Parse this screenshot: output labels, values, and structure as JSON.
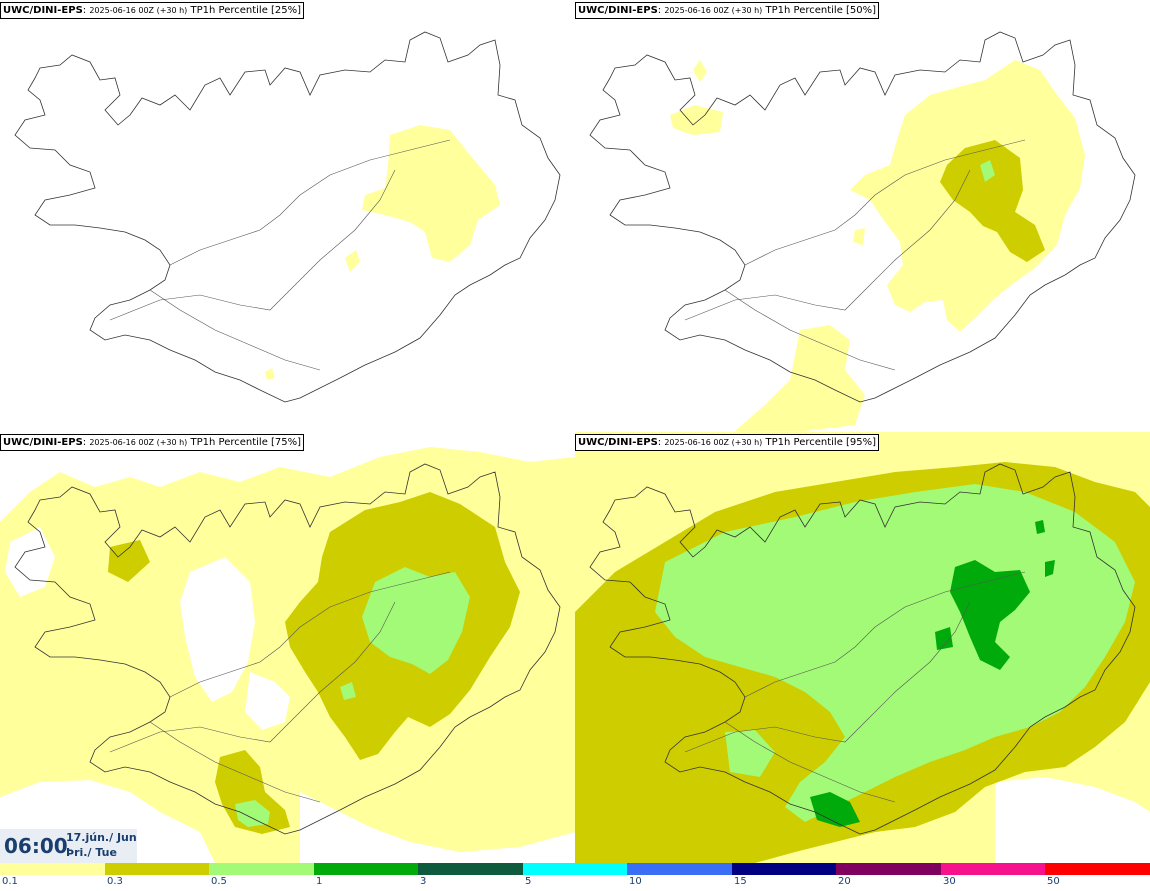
{
  "panels": [
    {
      "model": "UWC/DINI-EPS",
      "run": "2025-06-16 00Z (+30 h)",
      "field": "TP1h Percentile [25%]"
    },
    {
      "model": "UWC/DINI-EPS",
      "run": "2025-06-16 00Z (+30 h)",
      "field": "TP1h Percentile [50%]"
    },
    {
      "model": "UWC/DINI-EPS",
      "run": "2025-06-16 00Z (+30 h)",
      "field": "TP1h Percentile [75%]"
    },
    {
      "model": "UWC/DINI-EPS",
      "run": "2025-06-16 00Z (+30 h)",
      "field": "TP1h Percentile [95%]"
    }
  ],
  "valid_time": {
    "hour": "06:00",
    "date_line": "17.jún./ Jun",
    "day_line": "Þri./ Tue"
  },
  "colorbar": {
    "colors": [
      "#ffff9c",
      "#cdcd00",
      "#a2fa76",
      "#00aa0b",
      "#0d5a3d",
      "#00ffff",
      "#3a6ff5",
      "#000080",
      "#800060",
      "#f5128c",
      "#ff0000"
    ],
    "labels": [
      "0.1",
      "0.3",
      "0.5",
      "1",
      "3",
      "5",
      "10",
      "15",
      "20",
      "30",
      "50"
    ]
  }
}
